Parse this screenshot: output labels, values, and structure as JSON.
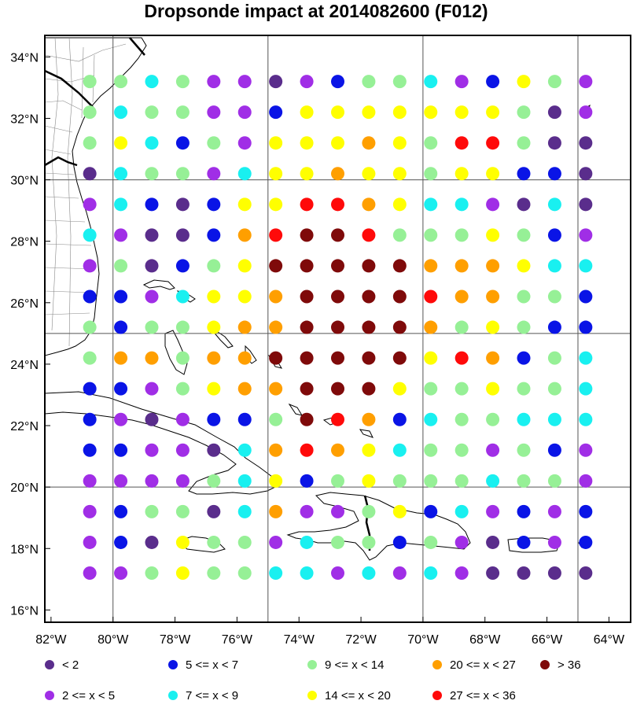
{
  "title": "Dropsonde impact at 2014082600 (F012)",
  "colors": {
    "c0": "#5a2d8c",
    "c1": "#a02ee6",
    "c2": "#0a14e6",
    "c3": "#19f0f0",
    "c4": "#96f096",
    "c5": "#ffff00",
    "c6": "#ff9f00",
    "c7": "#ff0a0a",
    "c8": "#7f0a0a"
  },
  "legend": [
    {
      "label": "<  2",
      "cls": 0
    },
    {
      "label": "5 <= x <  7",
      "cls": 2
    },
    {
      "label": "9 <= x < 14",
      "cls": 4
    },
    {
      "label": "20 <= x < 27",
      "cls": 6
    },
    {
      "label": "> 36",
      "cls": 8
    },
    {
      "label": "2 <= x <  5",
      "cls": 1
    },
    {
      "label": "7 <= x <  9",
      "cls": 3
    },
    {
      "label": "14 <= x < 20",
      "cls": 5
    },
    {
      "label": "27 <= x < 36",
      "cls": 7
    }
  ],
  "x_ticks": [
    "82°W",
    "80°W",
    "78°W",
    "76°W",
    "74°W",
    "72°W",
    "70°W",
    "68°W",
    "66°W",
    "64°W"
  ],
  "y_ticks": [
    "34°N",
    "32°N",
    "30°N",
    "28°N",
    "26°N",
    "24°N",
    "22°N",
    "20°N",
    "18°N",
    "16°N"
  ],
  "chart_data": {
    "type": "scatter",
    "projection": "lat-lon",
    "lon_range": [
      -82.2,
      -63.3
    ],
    "lat_range": [
      15.6,
      34.7
    ],
    "grid_lon": [
      -80,
      -75,
      -70,
      -65
    ],
    "grid_lat": [
      20,
      25,
      30
    ],
    "lons": [
      -80.75,
      -79.75,
      -78.75,
      -77.75,
      -76.75,
      -75.75,
      -74.75,
      -73.75,
      -72.75,
      -71.75,
      -70.75,
      -69.75,
      -68.75,
      -67.75,
      -66.75,
      -65.75,
      -64.75
    ],
    "lats": [
      33.2,
      32.2,
      31.2,
      30.2,
      29.2,
      28.2,
      27.2,
      26.2,
      25.2,
      24.2,
      23.2,
      22.2,
      21.2,
      20.2,
      19.2,
      18.2,
      17.2
    ],
    "impact_class_rows": [
      [
        4,
        4,
        3,
        4,
        1,
        1,
        0,
        1,
        2,
        4,
        4,
        3,
        1,
        2,
        5,
        4,
        1
      ],
      [
        4,
        3,
        4,
        4,
        1,
        1,
        2,
        5,
        5,
        5,
        5,
        5,
        5,
        5,
        4,
        0,
        1
      ],
      [
        4,
        5,
        3,
        2,
        4,
        1,
        5,
        5,
        5,
        6,
        5,
        4,
        7,
        7,
        4,
        0,
        0
      ],
      [
        0,
        3,
        4,
        4,
        1,
        3,
        5,
        5,
        6,
        5,
        5,
        4,
        5,
        5,
        2,
        2,
        0
      ],
      [
        1,
        3,
        2,
        0,
        2,
        5,
        5,
        7,
        7,
        6,
        5,
        3,
        3,
        1,
        0,
        3,
        0
      ],
      [
        3,
        1,
        0,
        0,
        2,
        6,
        7,
        8,
        8,
        7,
        4,
        4,
        4,
        5,
        4,
        2,
        1
      ],
      [
        1,
        4,
        0,
        2,
        4,
        5,
        8,
        8,
        8,
        8,
        8,
        6,
        6,
        6,
        5,
        3,
        3
      ],
      [
        2,
        2,
        1,
        3,
        5,
        5,
        6,
        8,
        8,
        8,
        8,
        7,
        6,
        6,
        4,
        4,
        2
      ],
      [
        4,
        2,
        4,
        4,
        5,
        6,
        6,
        8,
        8,
        8,
        8,
        6,
        4,
        5,
        4,
        2,
        2
      ],
      [
        4,
        6,
        6,
        4,
        6,
        6,
        8,
        8,
        8,
        8,
        8,
        5,
        7,
        6,
        2,
        4,
        3
      ],
      [
        2,
        2,
        1,
        4,
        5,
        6,
        6,
        8,
        8,
        8,
        5,
        4,
        4,
        5,
        4,
        4,
        3
      ],
      [
        2,
        1,
        0,
        1,
        2,
        2,
        4,
        8,
        7,
        6,
        2,
        3,
        4,
        4,
        3,
        3,
        3
      ],
      [
        2,
        2,
        1,
        1,
        0,
        3,
        6,
        7,
        6,
        5,
        3,
        4,
        4,
        1,
        4,
        2,
        1
      ],
      [
        1,
        1,
        1,
        1,
        4,
        3,
        5,
        2,
        4,
        5,
        4,
        4,
        4,
        3,
        4,
        4,
        1
      ],
      [
        1,
        2,
        4,
        4,
        0,
        3,
        6,
        1,
        1,
        4,
        5,
        2,
        3,
        1,
        2,
        1,
        2
      ],
      [
        1,
        2,
        0,
        5,
        4,
        4,
        1,
        3,
        4,
        4,
        2,
        4,
        1,
        0,
        2,
        1,
        2
      ],
      [
        1,
        1,
        4,
        5,
        4,
        4,
        3,
        3,
        1,
        3,
        1,
        3,
        1,
        0,
        0,
        0,
        0
      ]
    ]
  }
}
